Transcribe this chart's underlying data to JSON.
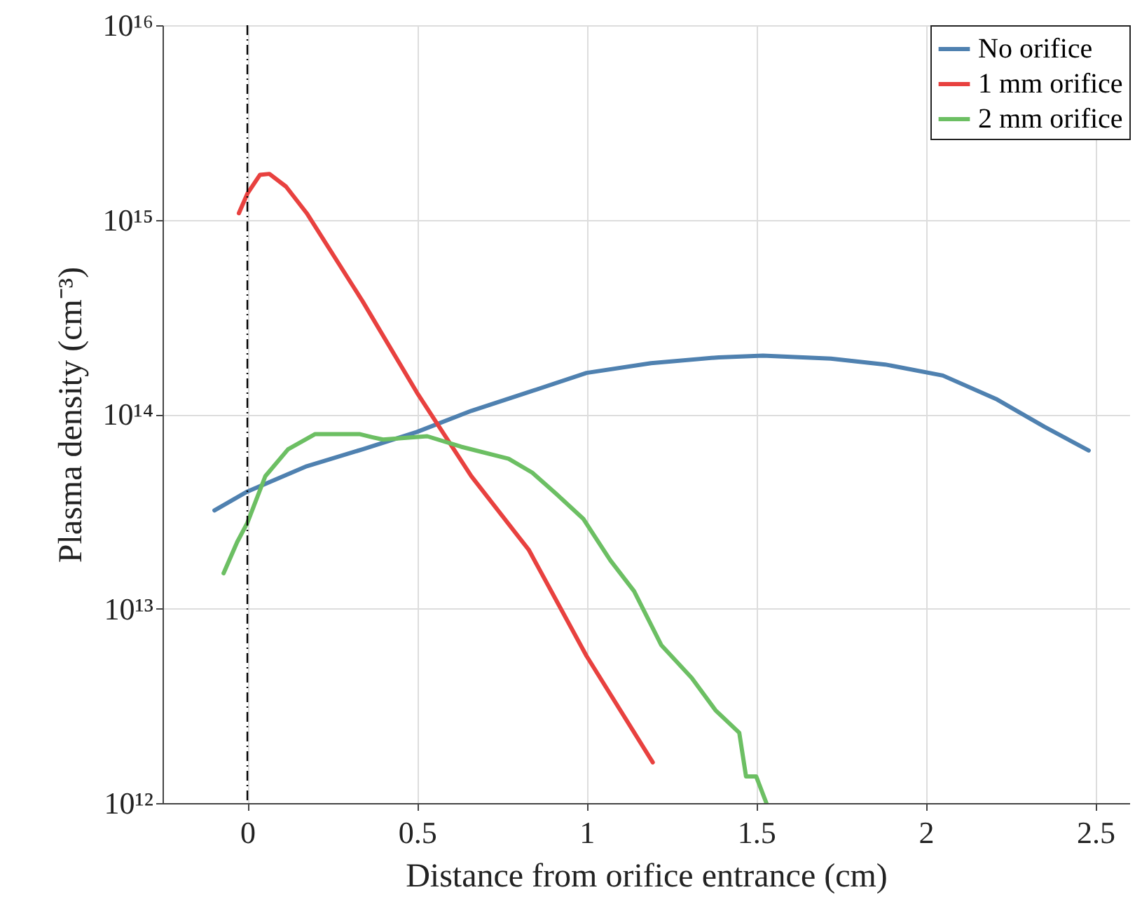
{
  "chart_data": {
    "type": "line",
    "xlabel": "Distance from orifice entrance (cm)",
    "ylabel": "Plasma density (cm⁻³)",
    "xlim": [
      -0.25,
      2.6
    ],
    "xticks": [
      0,
      0.5,
      1,
      1.5,
      2,
      2.5
    ],
    "ylim": [
      1000000000000.0,
      1e+16
    ],
    "yticks": [
      {
        "value": 1000000000000.0,
        "label": "10¹²"
      },
      {
        "value": 10000000000000.0,
        "label": "10¹³"
      },
      {
        "value": 100000000000000.0,
        "label": "10¹⁴"
      },
      {
        "value": 1000000000000000.0,
        "label": "10¹⁵"
      },
      {
        "value": 1e+16,
        "label": "10¹⁶"
      }
    ],
    "log": "y",
    "grid": true,
    "legend": "top right",
    "line_style": "solid",
    "ref_lines": [
      {
        "axis": "x",
        "value": 0,
        "color": "#000000",
        "line_style": "dashed"
      }
    ],
    "series": [
      {
        "name": "No orifice",
        "color": "#4f81b0",
        "x": [
          -0.097,
          0,
          0.175,
          0.34,
          0.5,
          0.66,
          0.83,
          1.0,
          1.19,
          1.39,
          1.52,
          1.72,
          1.88,
          2.05,
          2.21,
          2.35,
          2.48
        ],
        "values": [
          32000000000000.0,
          40000000000000.0,
          54000000000000.0,
          66000000000000.0,
          81000000000000.0,
          104000000000000.0,
          130000000000000.0,
          163000000000000.0,
          183000000000000.0,
          196000000000000.0,
          200000000000000.0,
          193000000000000.0,
          180000000000000.0,
          158000000000000.0,
          119000000000000.0,
          86000000000000.0,
          65000000000000.0
        ]
      },
      {
        "name": "1 mm orifice",
        "color": "#e8413f",
        "x": [
          -0.025,
          0,
          0.037,
          0.065,
          0.114,
          0.175,
          0.34,
          0.5,
          0.66,
          0.83,
          1.0,
          1.195
        ],
        "values": [
          1080000000000000.0,
          1360000000000000.0,
          1700000000000000.0,
          1720000000000000.0,
          1480000000000000.0,
          1080000000000000.0,
          380000000000000.0,
          129000000000000.0,
          48000000000000.0,
          20000000000000.0,
          5700000000000.0,
          1620000000000.0
        ]
      },
      {
        "name": "2 mm orifice",
        "color": "#6cbf63",
        "x": [
          -0.07,
          -0.03,
          0,
          0.053,
          0.12,
          0.2,
          0.33,
          0.37,
          0.4,
          0.53,
          0.63,
          0.77,
          0.84,
          0.91,
          0.99,
          1.07,
          1.14,
          1.22,
          1.31,
          1.38,
          1.45,
          1.47,
          1.5,
          1.53
        ],
        "values": [
          15200000000000.0,
          22000000000000.0,
          27600000000000.0,
          48000000000000.0,
          66000000000000.0,
          79000000000000.0,
          79000000000000.0,
          76000000000000.0,
          74000000000000.0,
          77000000000000.0,
          68000000000000.0,
          59000000000000.0,
          50000000000000.0,
          39000000000000.0,
          29000000000000.0,
          17700000000000.0,
          12300000000000.0,
          6500000000000.0,
          4400000000000.0,
          3000000000000.0,
          2300000000000.0,
          1370000000000.0,
          1370000000000.0,
          1000000000000.0
        ]
      }
    ]
  }
}
